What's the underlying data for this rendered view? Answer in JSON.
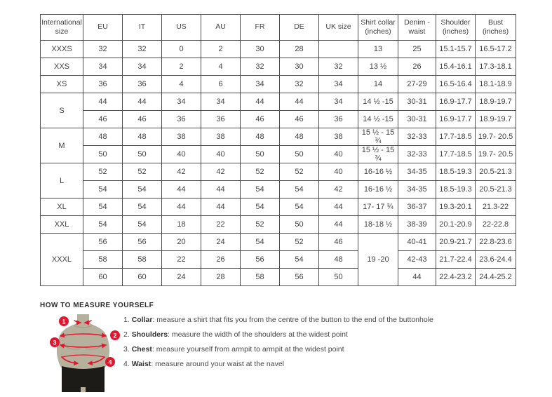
{
  "colors": {
    "accent_red": "#e0172f",
    "mannequin_body": "#b6b19d",
    "mannequin_shorts": "#1d1b18",
    "table_border": "#4d4d4d",
    "text": "#424242"
  },
  "table": {
    "headers": [
      "International size",
      "EU",
      "IT",
      "US",
      "AU",
      "FR",
      "DE",
      "UK size",
      "Shirt collar (inches)",
      "Denim - waist",
      "Shoulder (inches)",
      "Bust (inches)"
    ],
    "rows": [
      [
        "XXXS",
        "32",
        "32",
        "0",
        "2",
        "30",
        "28",
        "",
        "13",
        "25",
        "15.1-15.7",
        "16.5-17.2"
      ],
      [
        "XXS",
        "34",
        "34",
        "2",
        "4",
        "32",
        "30",
        "32",
        "13 ½",
        "26",
        "15.4-16.1",
        "17.3-18.1"
      ],
      [
        "XS",
        "36",
        "36",
        "4",
        "6",
        "34",
        "32",
        "34",
        "14",
        "27-29",
        "16.5-16.4",
        "18.1-18.9"
      ],
      [
        {
          "t": "S",
          "rs": 2
        },
        "44",
        "44",
        "34",
        "34",
        "44",
        "44",
        "34",
        "14 ½ -15",
        "30-31",
        "16.9-17.7",
        "18.9-19.7"
      ],
      [
        null,
        "46",
        "46",
        "36",
        "36",
        "46",
        "46",
        "36",
        "14 ½ -15",
        "30-31",
        "16.9-17.7",
        "18.9-19.7"
      ],
      [
        {
          "t": "M",
          "rs": 2
        },
        "48",
        "48",
        "38",
        "38",
        "48",
        "48",
        "38",
        "15 ½ - 15 ¾",
        "32-33",
        "17.7-18.5",
        "19.7- 20.5"
      ],
      [
        null,
        "50",
        "50",
        "40",
        "40",
        "50",
        "50",
        "40",
        "15 ½ - 15 ¾",
        "32-33",
        "17.7-18.5",
        "19.7- 20.5"
      ],
      [
        {
          "t": "L",
          "rs": 2
        },
        "52",
        "52",
        "42",
        "42",
        "52",
        "52",
        "40",
        "16-16 ½",
        "34-35",
        "18.5-19.3",
        "20.5-21.3"
      ],
      [
        null,
        "54",
        "54",
        "44",
        "44",
        "54",
        "54",
        "42",
        "16-16 ½",
        "34-35",
        "18.5-19.3",
        "20.5-21.3"
      ],
      [
        "XL",
        "54",
        "54",
        "44",
        "44",
        "54",
        "54",
        "44",
        "17- 17 ¾",
        "36-37",
        "19.3-20.1",
        "21.3-22"
      ],
      [
        "XXL",
        "54",
        "54",
        "18",
        "22",
        "52",
        "50",
        "44",
        "18-18 ½",
        "38-39",
        "20.1-20.9",
        "22-22.8"
      ],
      [
        {
          "t": "XXXL",
          "rs": 3
        },
        "56",
        "56",
        "20",
        "24",
        "54",
        "52",
        "46",
        {
          "t": "19 -20",
          "rs": 3
        },
        "40-41",
        "20.9-21.7",
        "22.8-23.6"
      ],
      [
        null,
        "58",
        "58",
        "22",
        "26",
        "56",
        "54",
        "48",
        null,
        "42-43",
        "21.7-22.4",
        "23.6-24.4"
      ],
      [
        null,
        "60",
        "60",
        "24",
        "28",
        "58",
        "56",
        "50",
        null,
        "44",
        "22.4-23.2",
        "24.4-25.2"
      ]
    ]
  },
  "measure": {
    "heading": "HOW TO MEASURE YOURSELF",
    "markers": [
      "1",
      "2",
      "3",
      "4"
    ],
    "items": [
      {
        "num": "1.",
        "term": "Collar",
        "text": ": measure a shirt that fits you from the centre of the button to the end of the buttonhole"
      },
      {
        "num": "2.",
        "term": "Shoulders",
        "text": ": measure the width of the shoulders at the widest point"
      },
      {
        "num": "3.",
        "term": "Chest",
        "text": ": measure yourself from armpit to armpit at the widest point"
      },
      {
        "num": "4.",
        "term": "Waist",
        "text": ": measure around your waist at the navel"
      }
    ]
  }
}
